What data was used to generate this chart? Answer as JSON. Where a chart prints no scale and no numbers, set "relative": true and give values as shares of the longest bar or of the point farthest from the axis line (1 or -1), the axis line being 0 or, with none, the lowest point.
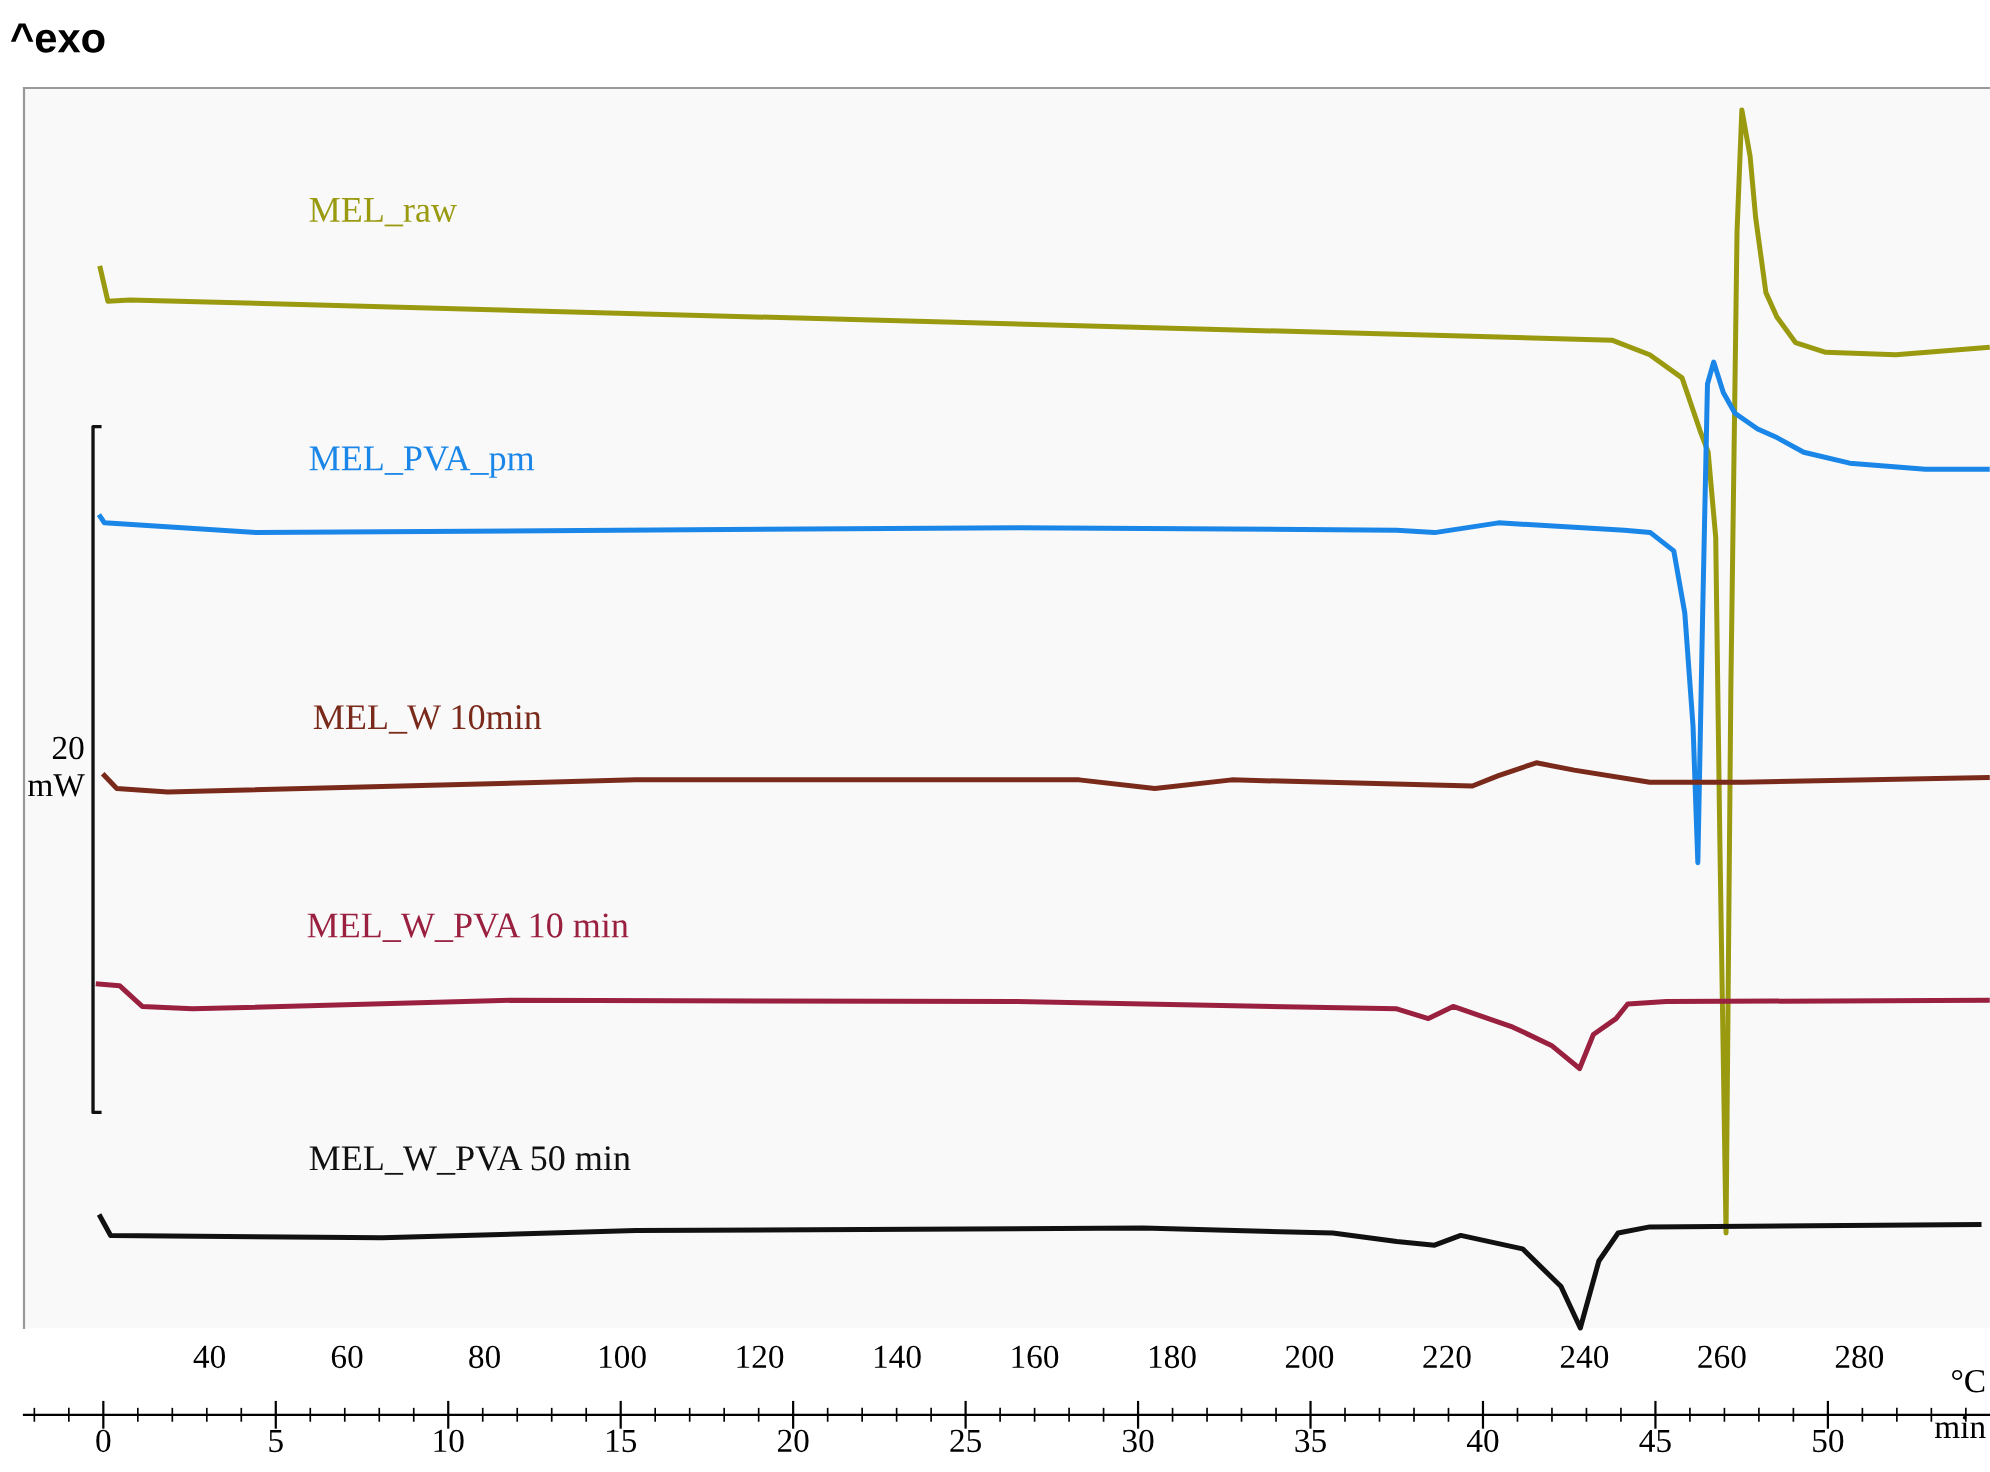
{
  "chart_data": {
    "type": "line",
    "title": "^exo",
    "relative": true,
    "xlabel": "°C",
    "x2label": "min",
    "xlim": [
      13,
      299
    ],
    "xticks": [
      40,
      60,
      80,
      100,
      120,
      140,
      160,
      180,
      200,
      220,
      240,
      260,
      280
    ],
    "x2lim": [
      -2.3,
      54.7
    ],
    "x2ticks": [
      0,
      5,
      10,
      15,
      20,
      25,
      30,
      35,
      40,
      45,
      50
    ],
    "annotations": [
      "20\nmW"
    ],
    "grid": false,
    "legend": false,
    "marker": "none",
    "line_style": "solid",
    "series": [
      {
        "name": "MEL_raw",
        "color": "#9a9a10",
        "x": [
          24.1,
          25.2,
          28.4,
          244.0,
          249.5,
          254.2,
          256.8,
          258.0,
          259.1,
          259.7,
          260.6,
          261.3,
          262.2,
          262.9,
          264.1,
          264.9,
          266.4,
          268.0,
          270.7,
          275.1,
          285.3,
          298.6
        ],
        "values": [
          0.87,
          0.843,
          0.844,
          0.811,
          0.799,
          0.78,
          0.737,
          0.719,
          0.649,
          0.4,
          0.078,
          0.525,
          0.9,
          1.0,
          0.962,
          0.912,
          0.85,
          0.83,
          0.809,
          0.801,
          0.799,
          0.805
        ]
      },
      {
        "name": "MEL_PVA_pm",
        "color": "#1a86e8",
        "x": [
          24.1,
          24.7,
          46.8,
          157.5,
          212.7,
          218.2,
          227.5,
          245.8,
          249.6,
          253.0,
          254.6,
          255.8,
          256.5,
          257.2,
          257.9,
          258.8,
          260.2,
          261.9,
          265.2,
          268.0,
          271.9,
          278.6,
          289.6,
          298.6
        ],
        "values": [
          0.666,
          0.661,
          0.653,
          0.657,
          0.655,
          0.653,
          0.661,
          0.655,
          0.653,
          0.638,
          0.587,
          0.494,
          0.382,
          0.587,
          0.775,
          0.793,
          0.768,
          0.751,
          0.738,
          0.731,
          0.719,
          0.71,
          0.705,
          0.705
        ]
      },
      {
        "name": "MEL_W 10min",
        "color": "#7a2a1a",
        "x": [
          24.7,
          26.5,
          33.9,
          102.0,
          166.5,
          177.5,
          188.7,
          223.7,
          227.5,
          233.0,
          238.5,
          249.5,
          262.9,
          298.6
        ],
        "values": [
          0.4535,
          0.443,
          0.44,
          0.45,
          0.45,
          0.443,
          0.45,
          0.445,
          0.4535,
          0.464,
          0.458,
          0.448,
          0.448,
          0.452
        ]
      },
      {
        "name": "MEL_W_PVA 10 min",
        "color": "#9a2040",
        "x": [
          23.8,
          26.9,
          30.2,
          37.5,
          83.7,
          157.5,
          212.7,
          217.3,
          220.9,
          229.6,
          235.2,
          239.3,
          241.3,
          244.6,
          246.3,
          251.9,
          298.6
        ],
        "values": [
          0.2825,
          0.281,
          0.264,
          0.262,
          0.269,
          0.268,
          0.262,
          0.254,
          0.264,
          0.247,
          0.232,
          0.213,
          0.241,
          0.254,
          0.266,
          0.268,
          0.269
        ]
      },
      {
        "name": "MEL_W_PVA 50 min",
        "color": "#111111",
        "x": [
          24.1,
          25.6,
          65.1,
          102.0,
          175.8,
          203.4,
          212.7,
          218.2,
          222.0,
          231.0,
          236.6,
          239.4,
          242.1,
          244.9,
          249.5,
          297.4
        ],
        "values": [
          0.0914,
          0.076,
          0.074,
          0.08,
          0.082,
          0.078,
          0.071,
          0.068,
          0.076,
          0.065,
          0.034,
          0.0,
          0.055,
          0.078,
          0.083,
          0.085
        ]
      }
    ]
  }
}
